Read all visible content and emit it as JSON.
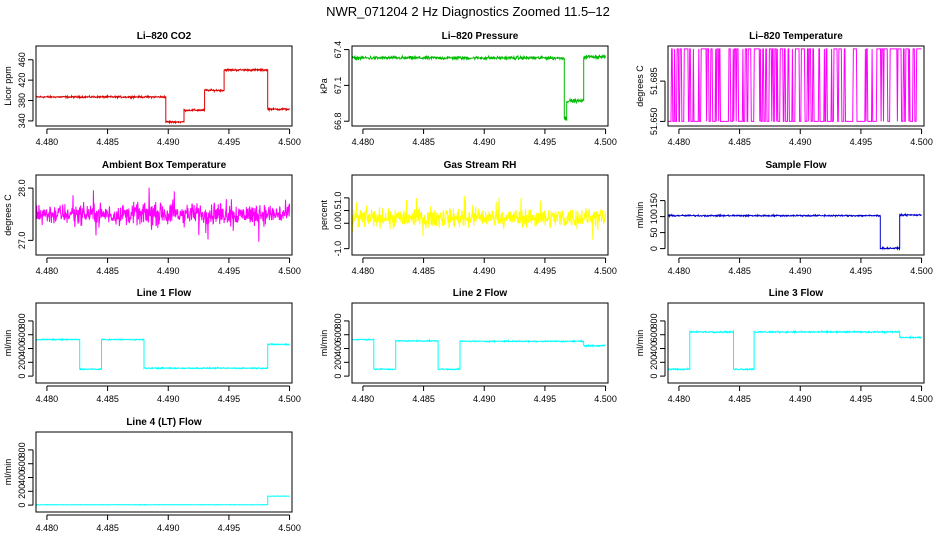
{
  "figure": {
    "title": "NWR_071204  2 Hz Diagnostics Zoomed 11.5–12"
  },
  "chart_data": [
    {
      "id": "co2",
      "type": "line",
      "title": "Li–820 CO2",
      "xlabel": "",
      "ylabel": "Licor ppm",
      "color": "#dd0000",
      "xlim": [
        4.4791,
        4.5002
      ],
      "ylim": [
        330,
        487
      ],
      "xticks": [
        "4.480",
        "4.485",
        "4.490",
        "4.495",
        "4.500"
      ],
      "yticks": [
        "340",
        "380",
        "420",
        "460"
      ],
      "noise": 1.5,
      "spikes": 0,
      "segments": [
        {
          "x0": 4.4791,
          "x1": 4.4898,
          "y": 387
        },
        {
          "x0": 4.4898,
          "x1": 4.4913,
          "y": 338
        },
        {
          "x0": 4.4913,
          "x1": 4.493,
          "y": 361
        },
        {
          "x0": 4.493,
          "x1": 4.4946,
          "y": 400
        },
        {
          "x0": 4.4946,
          "x1": 4.4982,
          "y": 440
        },
        {
          "x0": 4.4982,
          "x1": 4.5,
          "y": 363
        }
      ]
    },
    {
      "id": "pressure",
      "type": "line",
      "title": "Li–820 Pressure",
      "xlabel": "",
      "ylabel": "kPa",
      "color": "#00bb00",
      "xlim": [
        4.4791,
        4.5002
      ],
      "ylim": [
        66.76,
        67.43
      ],
      "xticks": [
        "4.480",
        "4.485",
        "4.490",
        "4.495",
        "4.500"
      ],
      "yticks": [
        "66.8",
        "67.1",
        "67.4"
      ],
      "noise": 0.012,
      "spikes": 0,
      "segments": [
        {
          "x0": 4.4791,
          "x1": 4.4966,
          "y": 67.33
        },
        {
          "x0": 4.4966,
          "x1": 4.4968,
          "y": 66.82
        },
        {
          "x0": 4.4968,
          "x1": 4.4982,
          "y": 66.97
        },
        {
          "x0": 4.4982,
          "x1": 4.5,
          "y": 67.34
        }
      ]
    },
    {
      "id": "temperature",
      "type": "line",
      "title": "Li–820 Temperature",
      "xlabel": "",
      "ylabel": "degrees C",
      "color": "#ff00ff",
      "xlim": [
        4.4791,
        4.5002
      ],
      "ylim": [
        51.646,
        51.7155
      ],
      "xticks": [
        "4.480",
        "4.485",
        "4.490",
        "4.495",
        "4.500"
      ],
      "yticks": [
        "51.650",
        "51.685"
      ],
      "mode": "binary",
      "levels": [
        51.65,
        51.713
      ],
      "noise": 0,
      "spikes": 0,
      "segments": []
    },
    {
      "id": "ambient",
      "type": "line",
      "title": "Ambient Box Temperature",
      "xlabel": "",
      "ylabel": "degrees C",
      "color": "#ff00ff",
      "xlim": [
        4.4791,
        4.5002
      ],
      "ylim": [
        26.72,
        28.25
      ],
      "xticks": [
        "4.480",
        "4.485",
        "4.490",
        "4.495",
        "4.500"
      ],
      "yticks": [
        "27.0",
        "28.0"
      ],
      "noise": 0.17,
      "spikes": 0.4,
      "segments": [
        {
          "x0": 4.4791,
          "x1": 4.5,
          "y": 27.5
        }
      ]
    },
    {
      "id": "rh",
      "type": "line",
      "title": "Gas Stream RH",
      "xlabel": "",
      "ylabel": "percent",
      "color": "#ffff00",
      "xlim": [
        4.4791,
        4.5002
      ],
      "ylim": [
        -1.25,
        1.9
      ],
      "xticks": [
        "4.480",
        "4.485",
        "4.490",
        "4.495",
        "4.500"
      ],
      "yticks": [
        "-1.0",
        "0.0",
        "0.5",
        "1.0"
      ],
      "noise": 0.32,
      "spikes": 0.9,
      "segments": [
        {
          "x0": 4.4791,
          "x1": 4.5,
          "y": 0.22
        }
      ]
    },
    {
      "id": "sample",
      "type": "line",
      "title": "Sample Flow",
      "xlabel": "",
      "ylabel": "ml/min",
      "color": "#0000cc",
      "xlim": [
        4.4791,
        4.5002
      ],
      "ylim": [
        -20,
        230
      ],
      "xticks": [
        "4.480",
        "4.485",
        "4.490",
        "4.495",
        "4.500"
      ],
      "yticks": [
        "0",
        "50",
        "100",
        "150"
      ],
      "noise": 2,
      "spikes": 0,
      "segments": [
        {
          "x0": 4.4791,
          "x1": 4.4966,
          "y": 103
        },
        {
          "x0": 4.4966,
          "x1": 4.4982,
          "y": 1
        },
        {
          "x0": 4.4982,
          "x1": 4.5,
          "y": 105
        }
      ]
    },
    {
      "id": "line1",
      "type": "line",
      "title": "Line 1 Flow",
      "xlabel": "",
      "ylabel": "ml/min",
      "color": "#00ffff",
      "xlim": [
        4.4791,
        4.5002
      ],
      "ylim": [
        -100,
        1060
      ],
      "xticks": [
        "4.480",
        "4.485",
        "4.490",
        "4.495",
        "4.500"
      ],
      "yticks": [
        "0",
        "200",
        "400",
        "600",
        "800"
      ],
      "noise": 7,
      "spikes": 0,
      "segments": [
        {
          "x0": 4.4791,
          "x1": 4.4827,
          "y": 530
        },
        {
          "x0": 4.4827,
          "x1": 4.4845,
          "y": 100
        },
        {
          "x0": 4.4845,
          "x1": 4.488,
          "y": 530
        },
        {
          "x0": 4.488,
          "x1": 4.4982,
          "y": 115
        },
        {
          "x0": 4.4982,
          "x1": 4.5,
          "y": 460
        }
      ]
    },
    {
      "id": "line2",
      "type": "line",
      "title": "Line 2 Flow",
      "xlabel": "",
      "ylabel": "ml/min",
      "color": "#00ffff",
      "xlim": [
        4.4791,
        4.5002
      ],
      "ylim": [
        -100,
        1060
      ],
      "xticks": [
        "4.480",
        "4.485",
        "4.490",
        "4.495",
        "4.500"
      ],
      "yticks": [
        "0",
        "200",
        "400",
        "600",
        "800"
      ],
      "noise": 7,
      "spikes": 0,
      "segments": [
        {
          "x0": 4.4791,
          "x1": 4.4809,
          "y": 530
        },
        {
          "x0": 4.4809,
          "x1": 4.4827,
          "y": 100
        },
        {
          "x0": 4.4827,
          "x1": 4.4862,
          "y": 510
        },
        {
          "x0": 4.4862,
          "x1": 4.488,
          "y": 100
        },
        {
          "x0": 4.488,
          "x1": 4.4982,
          "y": 505
        },
        {
          "x0": 4.4982,
          "x1": 4.5,
          "y": 440
        }
      ]
    },
    {
      "id": "line3",
      "type": "line",
      "title": "Line 3 Flow",
      "xlabel": "",
      "ylabel": "ml/min",
      "color": "#00ffff",
      "xlim": [
        4.4791,
        4.5002
      ],
      "ylim": [
        -100,
        1060
      ],
      "xticks": [
        "4.480",
        "4.485",
        "4.490",
        "4.495",
        "4.500"
      ],
      "yticks": [
        "0",
        "200",
        "400",
        "600",
        "800"
      ],
      "noise": 9,
      "spikes": 0,
      "segments": [
        {
          "x0": 4.4791,
          "x1": 4.4809,
          "y": 100
        },
        {
          "x0": 4.4809,
          "x1": 4.4845,
          "y": 640
        },
        {
          "x0": 4.4845,
          "x1": 4.4862,
          "y": 100
        },
        {
          "x0": 4.4862,
          "x1": 4.4982,
          "y": 640
        },
        {
          "x0": 4.4982,
          "x1": 4.5,
          "y": 560
        }
      ]
    },
    {
      "id": "line4",
      "type": "line",
      "title": "Line 4 (LT) Flow",
      "xlabel": "",
      "ylabel": "ml/min",
      "color": "#00ffff",
      "xlim": [
        4.4791,
        4.5002
      ],
      "ylim": [
        -100,
        1060
      ],
      "xticks": [
        "4.480",
        "4.485",
        "4.490",
        "4.495",
        "4.500"
      ],
      "yticks": [
        "0",
        "200",
        "400",
        "600",
        "800"
      ],
      "noise": 3,
      "spikes": 0,
      "segments": [
        {
          "x0": 4.4791,
          "x1": 4.4982,
          "y": 5
        },
        {
          "x0": 4.4982,
          "x1": 4.5,
          "y": 130
        }
      ]
    }
  ]
}
